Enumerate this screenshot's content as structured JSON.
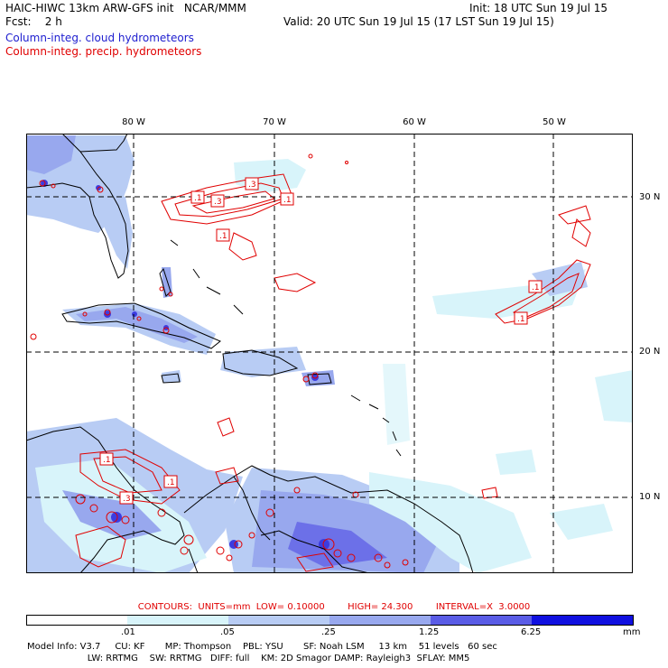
{
  "header": {
    "title": "HAIC-HIWC 13km ARW-GFS init   NCAR/MMM",
    "init": "Init: 18 UTC Sun 19 Jul 15",
    "fcst": "Fcst:    2 h",
    "valid": "Valid: 20 UTC Sun 19 Jul 15 (17 LST Sun 19 Jul 15)",
    "legend_cloud": "Column-integ. cloud hydrometeors",
    "legend_precip": "Column-integ. precip. hydrometeors"
  },
  "colors": {
    "cloud": "#2020d0",
    "precip": "#e00000",
    "land": "#000000"
  },
  "lon_labels": [
    "80 W",
    "70 W",
    "60 W",
    "50 W"
  ],
  "lat_labels": [
    "30 N",
    "20 N",
    "10 N"
  ],
  "contour_boxes": [
    ".1",
    ".3",
    ".3",
    ".1",
    ".1",
    ".1",
    ".1",
    ".1",
    ".1",
    ".3"
  ],
  "contour_info": "CONTOURS:  UNITS=mm  LOW= 0.10000        HIGH= 24.300        INTERVAL=X  3.0000",
  "colorbar": {
    "labels": [
      ".01",
      ".05",
      ".25",
      "1.25",
      "6.25"
    ],
    "unit": "mm",
    "colors": [
      "#ffffff",
      "#d8f4fa",
      "#b8ccf4",
      "#98a8ee",
      "#6c70e8",
      "#3c3ce0",
      "#1010e0"
    ]
  },
  "model_info": {
    "line1": "Model Info: V3.7     CU: KF       MP: Thompson    PBL: YSU       SF: Noah LSM     13 km    51 levels   60 sec",
    "line2": "                     LW: RRTMG    SW: RRTMG   DIFF: full    KM: 2D Smagor DAMP: Rayleigh3  SFLAY: MM5"
  }
}
